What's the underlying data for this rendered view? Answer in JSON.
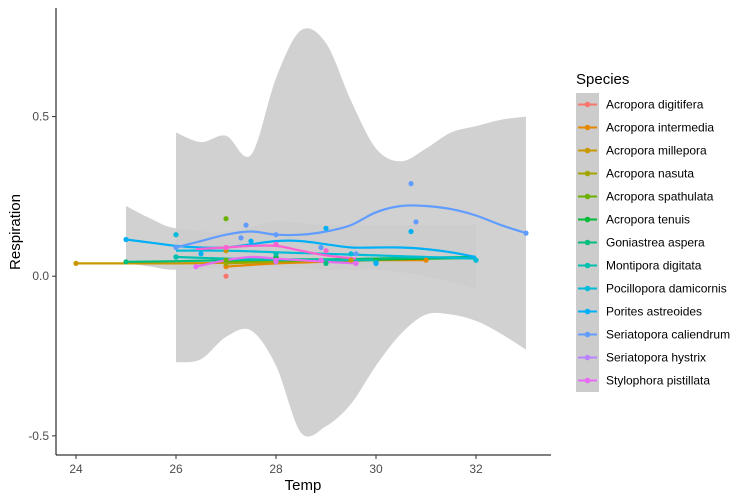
{
  "chart_data": {
    "type": "scatter",
    "xlabel": "Temp",
    "ylabel": "Respiration",
    "xlim": [
      23.6,
      33.5
    ],
    "ylim": [
      -0.56,
      0.84
    ],
    "xticks": [
      {
        "value": 24,
        "label": "24"
      },
      {
        "value": 26,
        "label": "26"
      },
      {
        "value": 28,
        "label": "28"
      },
      {
        "value": 30,
        "label": "30"
      },
      {
        "value": 32,
        "label": "32"
      }
    ],
    "yticks": [
      {
        "value": -0.5,
        "label": "-0.5"
      },
      {
        "value": 0.0,
        "label": "0.0"
      },
      {
        "value": 0.5,
        "label": "0.5"
      }
    ],
    "grid": false,
    "legend": {
      "title": "Species",
      "placement": "right"
    },
    "ribbons": [
      {
        "fill": "#cccccc",
        "upper": [
          [
            26,
            0.45
          ],
          [
            26.5,
            0.42
          ],
          [
            27,
            0.44
          ],
          [
            27.5,
            0.38
          ],
          [
            28,
            0.62
          ],
          [
            28.5,
            0.77
          ],
          [
            29,
            0.73
          ],
          [
            29.5,
            0.55
          ],
          [
            30,
            0.4
          ],
          [
            30.5,
            0.36
          ],
          [
            31,
            0.4
          ],
          [
            31.5,
            0.45
          ],
          [
            32,
            0.47
          ],
          [
            32.5,
            0.49
          ],
          [
            33,
            0.5
          ]
        ],
        "lower": [
          [
            33,
            -0.23
          ],
          [
            32.5,
            -0.18
          ],
          [
            32,
            -0.14
          ],
          [
            31.5,
            -0.12
          ],
          [
            31,
            -0.12
          ],
          [
            30.5,
            -0.18
          ],
          [
            30,
            -0.28
          ],
          [
            29.5,
            -0.4
          ],
          [
            29,
            -0.47
          ],
          [
            28.5,
            -0.49
          ],
          [
            28,
            -0.28
          ],
          [
            27.5,
            -0.17
          ],
          [
            27,
            -0.19
          ],
          [
            26.5,
            -0.26
          ],
          [
            26,
            -0.27
          ]
        ]
      },
      {
        "fill": "#cccccc",
        "upper": [
          [
            25,
            0.22
          ],
          [
            25.5,
            0.18
          ],
          [
            26,
            0.15
          ],
          [
            27,
            0.14
          ],
          [
            28,
            0.17
          ],
          [
            29,
            0.16
          ],
          [
            30,
            0.16
          ],
          [
            31,
            0.16
          ],
          [
            32,
            0.16
          ]
        ],
        "lower": [
          [
            32,
            -0.04
          ],
          [
            31,
            0.0
          ],
          [
            30,
            0.02
          ],
          [
            29,
            0.02
          ],
          [
            28,
            0.03
          ],
          [
            27,
            0.03
          ],
          [
            26,
            0.02
          ],
          [
            25.5,
            0.03
          ],
          [
            25,
            0.04
          ]
        ]
      }
    ],
    "series": [
      {
        "name": "Acropora digitifera",
        "color": "#F8766D",
        "points": [
          [
            27,
            0.0
          ]
        ],
        "curve": []
      },
      {
        "name": "Acropora intermedia",
        "color": "#E58700",
        "points": [
          [
            27,
            0.03
          ],
          [
            28,
            0.05
          ],
          [
            31,
            0.05
          ]
        ],
        "curve": [
          [
            27,
            0.03
          ],
          [
            28,
            0.04
          ],
          [
            29,
            0.045
          ],
          [
            30,
            0.05
          ],
          [
            31,
            0.05
          ]
        ]
      },
      {
        "name": "Acropora millepora",
        "color": "#C99800",
        "points": [
          [
            24,
            0.04
          ],
          [
            27,
            0.08
          ],
          [
            29.5,
            0.05
          ]
        ],
        "curve": [
          [
            24,
            0.04
          ],
          [
            25,
            0.04
          ],
          [
            26,
            0.04
          ],
          [
            27,
            0.042
          ],
          [
            28,
            0.045
          ],
          [
            29,
            0.05
          ],
          [
            29.5,
            0.05
          ]
        ]
      },
      {
        "name": "Acropora nasuta",
        "color": "#A3A500",
        "points": [
          [
            27,
            0.04
          ],
          [
            30,
            0.05
          ]
        ],
        "curve": [
          [
            27,
            0.04
          ],
          [
            28,
            0.045
          ],
          [
            29,
            0.05
          ],
          [
            30,
            0.05
          ]
        ]
      },
      {
        "name": "Acropora spathulata",
        "color": "#6BB100",
        "points": [
          [
            27,
            0.05
          ],
          [
            27,
            0.18
          ]
        ],
        "curve": [
          [
            27,
            0.045
          ],
          [
            28,
            0.05
          ],
          [
            29,
            0.05
          ],
          [
            30,
            0.055
          ],
          [
            31,
            0.057
          ]
        ]
      },
      {
        "name": "Acropora tenuis",
        "color": "#00BA38",
        "points": [
          [
            28,
            0.06
          ],
          [
            30,
            0.05
          ]
        ],
        "curve": [
          [
            28,
            0.05
          ],
          [
            29,
            0.05
          ],
          [
            30,
            0.052
          ],
          [
            31,
            0.055
          ],
          [
            32,
            0.057
          ]
        ]
      },
      {
        "name": "Goniastrea aspera",
        "color": "#00BF7D",
        "points": [
          [
            25,
            0.045
          ],
          [
            26,
            0.06
          ],
          [
            29,
            0.04
          ],
          [
            32,
            0.05
          ]
        ],
        "curve": [
          [
            25,
            0.045
          ],
          [
            26,
            0.047
          ],
          [
            27,
            0.05
          ],
          [
            28,
            0.052
          ],
          [
            29,
            0.053
          ],
          [
            30,
            0.055
          ],
          [
            31,
            0.058
          ],
          [
            32,
            0.06
          ]
        ]
      },
      {
        "name": "Montipora digitata",
        "color": "#00C0AF",
        "points": [
          [
            26,
            0.06
          ],
          [
            28,
            0.07
          ],
          [
            30,
            0.045
          ]
        ],
        "curve": [
          [
            26,
            0.06
          ],
          [
            27,
            0.055
          ],
          [
            28,
            0.052
          ],
          [
            29,
            0.05
          ],
          [
            30,
            0.05
          ]
        ]
      },
      {
        "name": "Pocillopora damicornis",
        "color": "#00BCD8",
        "points": [
          [
            26,
            0.13
          ],
          [
            29.5,
            0.07
          ],
          [
            30,
            0.04
          ],
          [
            32,
            0.05
          ]
        ],
        "curve": [
          [
            26,
            0.08
          ],
          [
            27,
            0.08
          ],
          [
            28,
            0.075
          ],
          [
            29,
            0.07
          ],
          [
            30,
            0.065
          ],
          [
            31,
            0.06
          ],
          [
            32,
            0.055
          ]
        ]
      },
      {
        "name": "Porites astreoides",
        "color": "#00B0F6",
        "points": [
          [
            25,
            0.115
          ],
          [
            26.5,
            0.07
          ],
          [
            27.5,
            0.11
          ],
          [
            28,
            0.05
          ],
          [
            29,
            0.15
          ],
          [
            30,
            0.04
          ],
          [
            30.7,
            0.14
          ]
        ],
        "curve": [
          [
            25,
            0.115
          ],
          [
            25.5,
            0.105
          ],
          [
            26,
            0.095
          ],
          [
            26.5,
            0.09
          ],
          [
            27,
            0.09
          ],
          [
            27.5,
            0.1
          ],
          [
            28,
            0.11
          ],
          [
            28.5,
            0.11
          ],
          [
            29,
            0.1
          ],
          [
            29.5,
            0.09
          ],
          [
            30,
            0.09
          ],
          [
            30.5,
            0.09
          ],
          [
            31,
            0.085
          ],
          [
            31.5,
            0.075
          ],
          [
            32,
            0.06
          ]
        ]
      },
      {
        "name": "Seriatopora caliendrum",
        "color": "#619CFF",
        "points": [
          [
            26,
            0.09
          ],
          [
            27.3,
            0.12
          ],
          [
            27.4,
            0.16
          ],
          [
            28,
            0.13
          ],
          [
            28.9,
            0.09
          ],
          [
            29.6,
            0.07
          ],
          [
            30.7,
            0.29
          ],
          [
            30.8,
            0.17
          ],
          [
            33,
            0.135
          ]
        ],
        "curve": [
          [
            26,
            0.09
          ],
          [
            26.5,
            0.11
          ],
          [
            27,
            0.13
          ],
          [
            27.5,
            0.14
          ],
          [
            28,
            0.13
          ],
          [
            28.5,
            0.13
          ],
          [
            29,
            0.14
          ],
          [
            29.5,
            0.16
          ],
          [
            30,
            0.2
          ],
          [
            30.5,
            0.22
          ],
          [
            31,
            0.22
          ],
          [
            31.5,
            0.21
          ],
          [
            32,
            0.19
          ],
          [
            32.5,
            0.16
          ],
          [
            33,
            0.135
          ]
        ]
      },
      {
        "name": "Seriatopora hystrix",
        "color": "#B983FF",
        "points": [
          [
            28,
            0.045
          ]
        ],
        "curve": []
      },
      {
        "name": "Stylophora pistillata",
        "color": "#E76BF3",
        "points": [
          [
            26.4,
            0.03
          ],
          [
            28,
            0.05
          ],
          [
            28.9,
            0.05
          ],
          [
            29.6,
            0.04
          ]
        ],
        "curve": [
          [
            26.4,
            0.03
          ],
          [
            27,
            0.05
          ],
          [
            27.5,
            0.06
          ],
          [
            28,
            0.055
          ],
          [
            28.5,
            0.05
          ],
          [
            29,
            0.045
          ],
          [
            29.6,
            0.04
          ]
        ]
      },
      {
        "name": "",
        "color": "#FD61D1",
        "points": [
          [
            27,
            0.09
          ],
          [
            28,
            0.1
          ],
          [
            29,
            0.08
          ]
        ],
        "curve": [
          [
            26.4,
            0.085
          ],
          [
            27,
            0.09
          ],
          [
            27.5,
            0.095
          ],
          [
            28,
            0.095
          ],
          [
            28.5,
            0.08
          ],
          [
            29,
            0.065
          ],
          [
            29.6,
            0.055
          ]
        ]
      }
    ]
  }
}
